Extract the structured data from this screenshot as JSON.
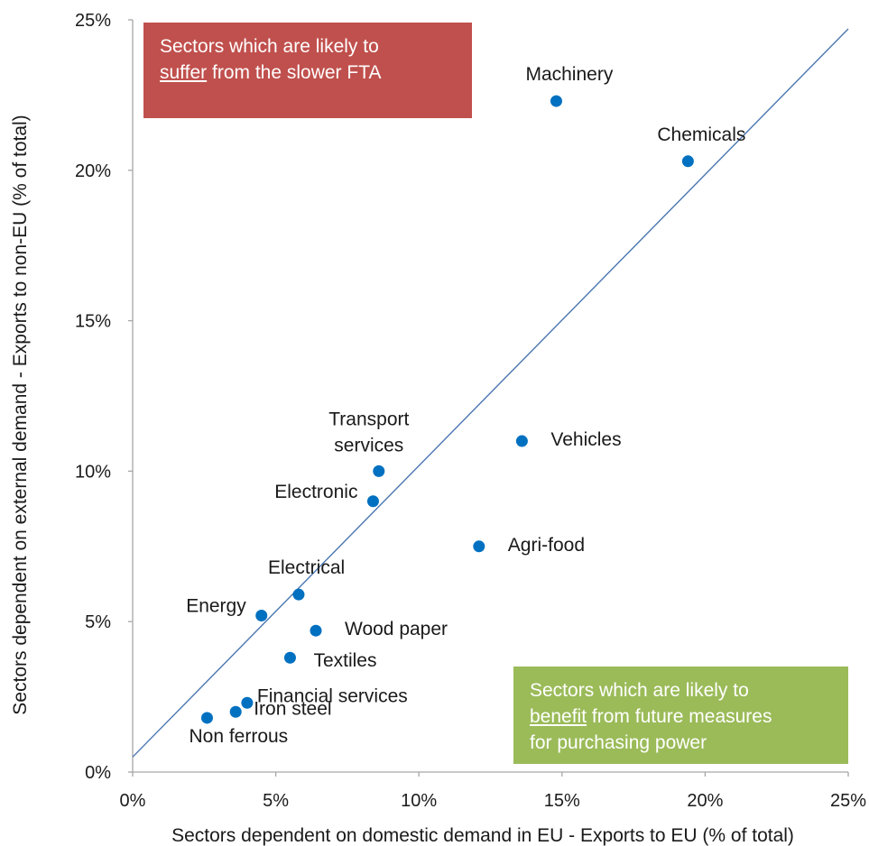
{
  "chart_data": {
    "type": "scatter",
    "xlabel": "Sectors dependent  on domestic demand in EU - Exports  to EU (% of total)",
    "ylabel": "Sectors dependent  on external demand  - Exports  to non-EU  (% of total)",
    "xlim": [
      0,
      25
    ],
    "ylim": [
      0,
      25
    ],
    "x_ticks": [
      "0%",
      "5%",
      "10%",
      "15%",
      "20%",
      "25%"
    ],
    "y_ticks": [
      "0%",
      "5%",
      "10%",
      "15%",
      "20%",
      "25%"
    ],
    "diagonal_line": {
      "from": [
        0,
        0.5
      ],
      "to": [
        25,
        24.7
      ]
    },
    "marker_color": "#0070c0",
    "line_color": "#4a76b0",
    "points": [
      {
        "label": "Machinery",
        "x": 14.8,
        "y": 22.3,
        "anchor": "above"
      },
      {
        "label": "Chemicals",
        "x": 19.4,
        "y": 20.3,
        "anchor": "above"
      },
      {
        "label": "Vehicles",
        "x": 13.6,
        "y": 11.0,
        "anchor": "right"
      },
      {
        "label": "Transport services",
        "x": 8.6,
        "y": 10.0,
        "anchor": "above-2line"
      },
      {
        "label": "Electronic",
        "x": 8.4,
        "y": 9.0,
        "anchor": "left"
      },
      {
        "label": "Agri-food",
        "x": 12.1,
        "y": 7.5,
        "anchor": "right"
      },
      {
        "label": "Electrical",
        "x": 5.8,
        "y": 5.9,
        "anchor": "above"
      },
      {
        "label": "Energy",
        "x": 4.5,
        "y": 5.2,
        "anchor": "left"
      },
      {
        "label": "Wood paper",
        "x": 6.4,
        "y": 4.7,
        "anchor": "right"
      },
      {
        "label": "Textiles",
        "x": 5.5,
        "y": 3.8,
        "anchor": "right-below"
      },
      {
        "label": "Financial services",
        "x": 4.0,
        "y": 2.3,
        "anchor": "right-up"
      },
      {
        "label": "Iron steel",
        "x": 3.6,
        "y": 2.0,
        "anchor": "right-down"
      },
      {
        "label": "Non ferrous",
        "x": 2.6,
        "y": 1.8,
        "anchor": "below"
      }
    ]
  },
  "annotations": {
    "suffer": {
      "line1": "Sectors which are  likely to",
      "underlined": "suffer",
      "line2_rest": " from the slower  FTA",
      "color": "#c0504d"
    },
    "benefit": {
      "line1": "Sectors which are likely to",
      "underlined": "benefit",
      "line2_rest": " from future  measures",
      "line3": "for purchasing  power",
      "color": "#9bbb59"
    }
  }
}
